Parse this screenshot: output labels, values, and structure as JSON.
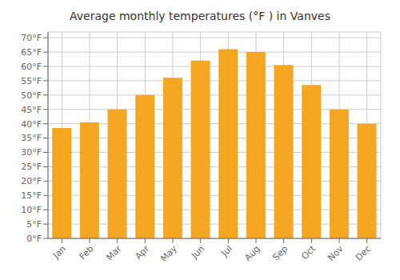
{
  "chart_data": {
    "type": "bar",
    "title": "Average monthly temperatures (°F ) in Vanves",
    "categories": [
      "Jan",
      "Feb",
      "Mar",
      "Apr",
      "May",
      "Jun",
      "Jul",
      "Aug",
      "Sep",
      "Oct",
      "Nov",
      "Dec"
    ],
    "values": [
      38.5,
      40.5,
      45.0,
      50.0,
      56.0,
      62.0,
      66.0,
      65.0,
      60.5,
      53.5,
      45.0,
      40.0
    ],
    "color": "#F5A623",
    "ylim": [
      0,
      72
    ],
    "yticks": [
      {
        "value": 0,
        "label": "0°F"
      },
      {
        "value": 5,
        "label": "5°F"
      },
      {
        "value": 10,
        "label": "10°F"
      },
      {
        "value": 15,
        "label": "15°F"
      },
      {
        "value": 20,
        "label": "20°F"
      },
      {
        "value": 25,
        "label": "25°F"
      },
      {
        "value": 30,
        "label": "30°F"
      },
      {
        "value": 35,
        "label": "35°F"
      },
      {
        "value": 40,
        "label": "40°F"
      },
      {
        "value": 45,
        "label": "45°F"
      },
      {
        "value": 50,
        "label": "50°F"
      },
      {
        "value": 55,
        "label": "55°F"
      },
      {
        "value": 60,
        "label": "60°F"
      },
      {
        "value": 65,
        "label": "65°F"
      },
      {
        "value": 70,
        "label": "70°F"
      }
    ],
    "grid": true
  }
}
